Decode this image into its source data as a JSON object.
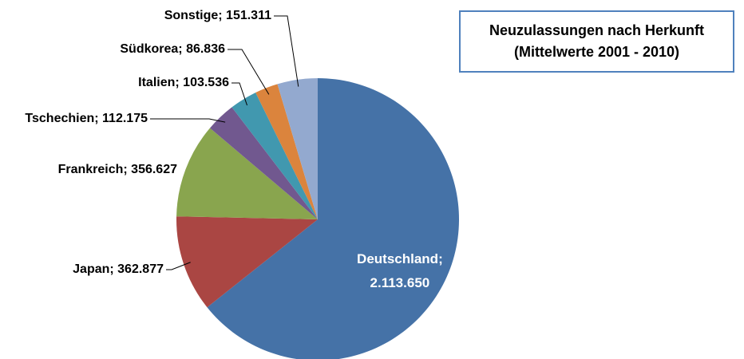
{
  "chart_data": {
    "type": "pie",
    "title": "Neuzulassungen nach Herkunft (Mittelwerte 2001 - 2010)",
    "values": [
      2113650,
      362877,
      356627,
      112175,
      103536,
      86836,
      151311
    ],
    "value_labels": [
      "Deutschland; 2.113.650",
      "Japan; 362.877",
      "Frankreich; 356.627",
      "Tschechien; 112.175",
      "Italien; 103.536",
      "Südkorea; 86.836",
      "Sonstige; 151.311"
    ],
    "colors": [
      "#4572a7",
      "#aa4643",
      "#89a54e",
      "#71588f",
      "#4198af",
      "#db843d",
      "#93a9cf"
    ]
  }
}
